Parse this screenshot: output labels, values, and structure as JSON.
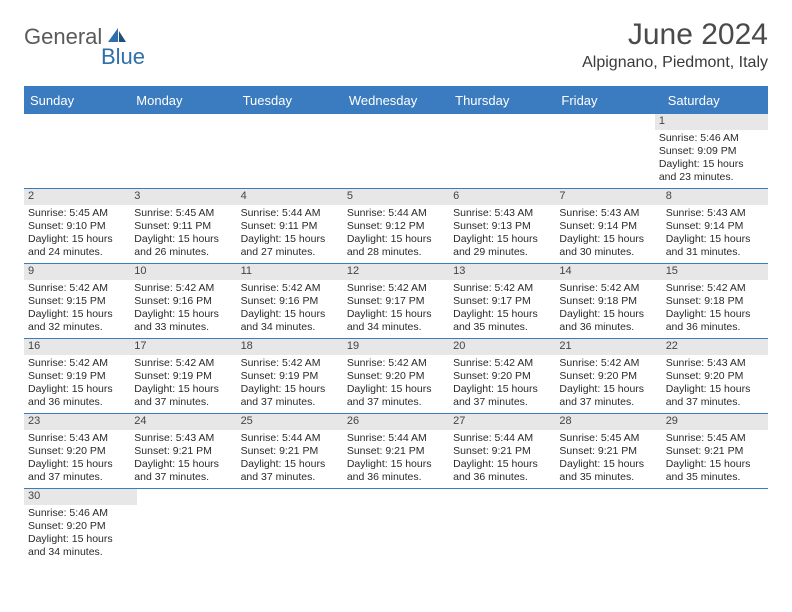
{
  "brand": {
    "general": "General",
    "blue": "Blue"
  },
  "title": "June 2024",
  "location": "Alpignano, Piedmont, Italy",
  "colors": {
    "header_bg": "#3b7bbf",
    "header_text": "#ffffff",
    "daynum_bg": "#e7e7e7",
    "border": "#3b7bbf",
    "text": "#2a2a2a"
  },
  "dow": [
    "Sunday",
    "Monday",
    "Tuesday",
    "Wednesday",
    "Thursday",
    "Friday",
    "Saturday"
  ],
  "weeks": [
    [
      null,
      null,
      null,
      null,
      null,
      null,
      {
        "n": "1",
        "sr": "Sunrise: 5:46 AM",
        "ss": "Sunset: 9:09 PM",
        "d1": "Daylight: 15 hours",
        "d2": "and 23 minutes."
      }
    ],
    [
      {
        "n": "2",
        "sr": "Sunrise: 5:45 AM",
        "ss": "Sunset: 9:10 PM",
        "d1": "Daylight: 15 hours",
        "d2": "and 24 minutes."
      },
      {
        "n": "3",
        "sr": "Sunrise: 5:45 AM",
        "ss": "Sunset: 9:11 PM",
        "d1": "Daylight: 15 hours",
        "d2": "and 26 minutes."
      },
      {
        "n": "4",
        "sr": "Sunrise: 5:44 AM",
        "ss": "Sunset: 9:11 PM",
        "d1": "Daylight: 15 hours",
        "d2": "and 27 minutes."
      },
      {
        "n": "5",
        "sr": "Sunrise: 5:44 AM",
        "ss": "Sunset: 9:12 PM",
        "d1": "Daylight: 15 hours",
        "d2": "and 28 minutes."
      },
      {
        "n": "6",
        "sr": "Sunrise: 5:43 AM",
        "ss": "Sunset: 9:13 PM",
        "d1": "Daylight: 15 hours",
        "d2": "and 29 minutes."
      },
      {
        "n": "7",
        "sr": "Sunrise: 5:43 AM",
        "ss": "Sunset: 9:14 PM",
        "d1": "Daylight: 15 hours",
        "d2": "and 30 minutes."
      },
      {
        "n": "8",
        "sr": "Sunrise: 5:43 AM",
        "ss": "Sunset: 9:14 PM",
        "d1": "Daylight: 15 hours",
        "d2": "and 31 minutes."
      }
    ],
    [
      {
        "n": "9",
        "sr": "Sunrise: 5:42 AM",
        "ss": "Sunset: 9:15 PM",
        "d1": "Daylight: 15 hours",
        "d2": "and 32 minutes."
      },
      {
        "n": "10",
        "sr": "Sunrise: 5:42 AM",
        "ss": "Sunset: 9:16 PM",
        "d1": "Daylight: 15 hours",
        "d2": "and 33 minutes."
      },
      {
        "n": "11",
        "sr": "Sunrise: 5:42 AM",
        "ss": "Sunset: 9:16 PM",
        "d1": "Daylight: 15 hours",
        "d2": "and 34 minutes."
      },
      {
        "n": "12",
        "sr": "Sunrise: 5:42 AM",
        "ss": "Sunset: 9:17 PM",
        "d1": "Daylight: 15 hours",
        "d2": "and 34 minutes."
      },
      {
        "n": "13",
        "sr": "Sunrise: 5:42 AM",
        "ss": "Sunset: 9:17 PM",
        "d1": "Daylight: 15 hours",
        "d2": "and 35 minutes."
      },
      {
        "n": "14",
        "sr": "Sunrise: 5:42 AM",
        "ss": "Sunset: 9:18 PM",
        "d1": "Daylight: 15 hours",
        "d2": "and 36 minutes."
      },
      {
        "n": "15",
        "sr": "Sunrise: 5:42 AM",
        "ss": "Sunset: 9:18 PM",
        "d1": "Daylight: 15 hours",
        "d2": "and 36 minutes."
      }
    ],
    [
      {
        "n": "16",
        "sr": "Sunrise: 5:42 AM",
        "ss": "Sunset: 9:19 PM",
        "d1": "Daylight: 15 hours",
        "d2": "and 36 minutes."
      },
      {
        "n": "17",
        "sr": "Sunrise: 5:42 AM",
        "ss": "Sunset: 9:19 PM",
        "d1": "Daylight: 15 hours",
        "d2": "and 37 minutes."
      },
      {
        "n": "18",
        "sr": "Sunrise: 5:42 AM",
        "ss": "Sunset: 9:19 PM",
        "d1": "Daylight: 15 hours",
        "d2": "and 37 minutes."
      },
      {
        "n": "19",
        "sr": "Sunrise: 5:42 AM",
        "ss": "Sunset: 9:20 PM",
        "d1": "Daylight: 15 hours",
        "d2": "and 37 minutes."
      },
      {
        "n": "20",
        "sr": "Sunrise: 5:42 AM",
        "ss": "Sunset: 9:20 PM",
        "d1": "Daylight: 15 hours",
        "d2": "and 37 minutes."
      },
      {
        "n": "21",
        "sr": "Sunrise: 5:42 AM",
        "ss": "Sunset: 9:20 PM",
        "d1": "Daylight: 15 hours",
        "d2": "and 37 minutes."
      },
      {
        "n": "22",
        "sr": "Sunrise: 5:43 AM",
        "ss": "Sunset: 9:20 PM",
        "d1": "Daylight: 15 hours",
        "d2": "and 37 minutes."
      }
    ],
    [
      {
        "n": "23",
        "sr": "Sunrise: 5:43 AM",
        "ss": "Sunset: 9:20 PM",
        "d1": "Daylight: 15 hours",
        "d2": "and 37 minutes."
      },
      {
        "n": "24",
        "sr": "Sunrise: 5:43 AM",
        "ss": "Sunset: 9:21 PM",
        "d1": "Daylight: 15 hours",
        "d2": "and 37 minutes."
      },
      {
        "n": "25",
        "sr": "Sunrise: 5:44 AM",
        "ss": "Sunset: 9:21 PM",
        "d1": "Daylight: 15 hours",
        "d2": "and 37 minutes."
      },
      {
        "n": "26",
        "sr": "Sunrise: 5:44 AM",
        "ss": "Sunset: 9:21 PM",
        "d1": "Daylight: 15 hours",
        "d2": "and 36 minutes."
      },
      {
        "n": "27",
        "sr": "Sunrise: 5:44 AM",
        "ss": "Sunset: 9:21 PM",
        "d1": "Daylight: 15 hours",
        "d2": "and 36 minutes."
      },
      {
        "n": "28",
        "sr": "Sunrise: 5:45 AM",
        "ss": "Sunset: 9:21 PM",
        "d1": "Daylight: 15 hours",
        "d2": "and 35 minutes."
      },
      {
        "n": "29",
        "sr": "Sunrise: 5:45 AM",
        "ss": "Sunset: 9:21 PM",
        "d1": "Daylight: 15 hours",
        "d2": "and 35 minutes."
      }
    ],
    [
      {
        "n": "30",
        "sr": "Sunrise: 5:46 AM",
        "ss": "Sunset: 9:20 PM",
        "d1": "Daylight: 15 hours",
        "d2": "and 34 minutes."
      },
      null,
      null,
      null,
      null,
      null,
      null
    ]
  ]
}
